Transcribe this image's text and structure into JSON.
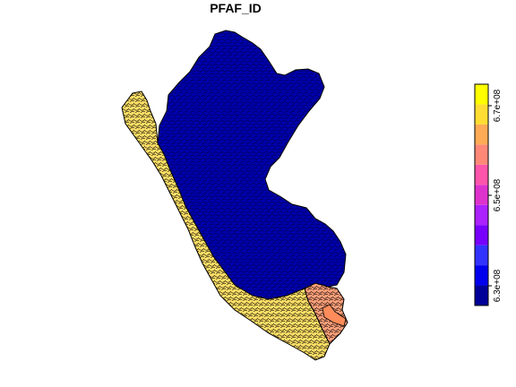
{
  "title": "PFAF_ID",
  "map": {
    "regions": [
      {
        "name": "amazon-basins",
        "color": "#0000aa"
      },
      {
        "name": "pacific-coast-basins",
        "color": "#ffe066"
      },
      {
        "name": "lake-titicaca-basins",
        "color": "#ffa07a"
      },
      {
        "name": "lake-titicaca",
        "color": "#ff8c5a"
      }
    ],
    "border_color": "#000000"
  },
  "legend": {
    "colors": [
      "#000099",
      "#0000ee",
      "#3333ff",
      "#7700ff",
      "#aa22ff",
      "#dd33cc",
      "#ff55aa",
      "#ff8877",
      "#ffaa55",
      "#ffdd33",
      "#ffff00"
    ],
    "ticks": [
      "6.3e+08",
      "6.5e+08",
      "6.7e+08"
    ]
  }
}
